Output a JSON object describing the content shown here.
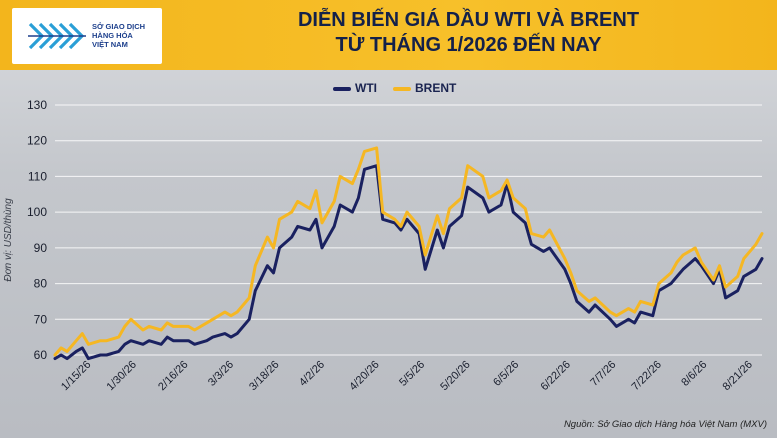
{
  "header": {
    "logo_lines": [
      "SỞ GIAO DỊCH",
      "HÀNG HÓA",
      "VIỆT NAM"
    ],
    "title_line1": "DIỄN BIẾN GIÁ DẦU WTI VÀ BRENT",
    "title_line2": "TỪ THÁNG 1/2026 ĐẾN NAY"
  },
  "footer": {
    "source": "Nguồn: Sở Giao dịch Hàng hóa Việt Nam (MXV)"
  },
  "colors": {
    "wti": "#1a2160",
    "brent": "#f5b723",
    "banner": "#f5b923",
    "grid": "#ffffff"
  },
  "chart_data": {
    "type": "line",
    "title": "DIỄN BIẾN GIÁ DẦU WTI VÀ BRENT TỪ THÁNG 1/2026 ĐẾN NAY",
    "ylabel": "Đơn vị: USD/thùng",
    "xlabel": "",
    "ylim": [
      60,
      130
    ],
    "yticks": [
      60,
      70,
      80,
      90,
      100,
      110,
      120,
      130
    ],
    "xtick_labels": [
      "1/15/26",
      "1/30/26",
      "2/16/26",
      "3/3/26",
      "3/18/26",
      "4/2/26",
      "4/20/26",
      "5/5/26",
      "5/20/26",
      "6/5/26",
      "6/22/26",
      "7/7/26",
      "7/22/26",
      "8/6/26",
      "8/21/26"
    ],
    "x": [
      "1/5/26",
      "1/7/26",
      "1/9/26",
      "1/12/26",
      "1/14/26",
      "1/16/26",
      "1/20/26",
      "1/22/26",
      "1/26/26",
      "1/28/26",
      "1/30/26",
      "2/3/26",
      "2/5/26",
      "2/9/26",
      "2/11/26",
      "2/13/26",
      "2/18/26",
      "2/20/26",
      "2/24/26",
      "2/26/26",
      "3/2/26",
      "3/4/26",
      "3/6/26",
      "3/10/26",
      "3/12/26",
      "3/16/26",
      "3/18/26",
      "3/20/26",
      "3/24/26",
      "3/26/26",
      "3/30/26",
      "4/1/26",
      "4/3/26",
      "4/7/26",
      "4/9/26",
      "4/13/26",
      "4/15/26",
      "4/17/26",
      "4/21/26",
      "4/23/26",
      "4/27/26",
      "4/29/26",
      "5/1/26",
      "5/5/26",
      "5/7/26",
      "5/11/26",
      "5/13/26",
      "5/15/26",
      "5/19/26",
      "5/21/26",
      "5/26/26",
      "5/28/26",
      "6/1/26",
      "6/3/26",
      "6/5/26",
      "6/9/26",
      "6/11/26",
      "6/15/26",
      "6/17/26",
      "6/22/26",
      "6/24/26",
      "6/26/26",
      "6/30/26",
      "7/2/26",
      "7/7/26",
      "7/9/26",
      "7/13/26",
      "7/15/26",
      "7/17/26",
      "7/21/26",
      "7/23/26",
      "7/27/26",
      "7/29/26",
      "7/31/26",
      "8/4/26",
      "8/6/26",
      "8/10/26",
      "8/12/26",
      "8/14/26",
      "8/18/26",
      "8/20/26",
      "8/24/26",
      "8/26/26"
    ],
    "series": [
      {
        "name": "WTI",
        "values": [
          59,
          60,
          59,
          61,
          62,
          59,
          60,
          60,
          61,
          63,
          64,
          63,
          64,
          63,
          65,
          64,
          64,
          63,
          64,
          65,
          66,
          65,
          66,
          70,
          78,
          85,
          83,
          90,
          93,
          96,
          95,
          98,
          90,
          96,
          102,
          100,
          104,
          112,
          113,
          98,
          97,
          95,
          98,
          94,
          84,
          95,
          90,
          96,
          99,
          107,
          104,
          100,
          102,
          108,
          100,
          97,
          91,
          89,
          90,
          84,
          80,
          75,
          72,
          74,
          70,
          68,
          70,
          69,
          72,
          71,
          78,
          80,
          82,
          84,
          87,
          85,
          80,
          84,
          76,
          78,
          82,
          84,
          87
        ]
      },
      {
        "name": "BRENT",
        "values": [
          60,
          62,
          61,
          64,
          66,
          63,
          64,
          64,
          65,
          68,
          70,
          67,
          68,
          67,
          69,
          68,
          68,
          67,
          69,
          70,
          72,
          71,
          72,
          76,
          85,
          93,
          90,
          98,
          100,
          103,
          101,
          106,
          97,
          103,
          110,
          108,
          112,
          117,
          118,
          100,
          98,
          96,
          100,
          96,
          88,
          99,
          94,
          101,
          104,
          113,
          110,
          104,
          106,
          109,
          104,
          101,
          94,
          93,
          95,
          87,
          83,
          78,
          75,
          76,
          72,
          71,
          73,
          72,
          75,
          74,
          80,
          83,
          86,
          88,
          90,
          86,
          81,
          85,
          79,
          82,
          87,
          91,
          94
        ]
      }
    ],
    "legend": [
      "WTI",
      "BRENT"
    ],
    "legend_position": "top-center",
    "grid": true
  }
}
